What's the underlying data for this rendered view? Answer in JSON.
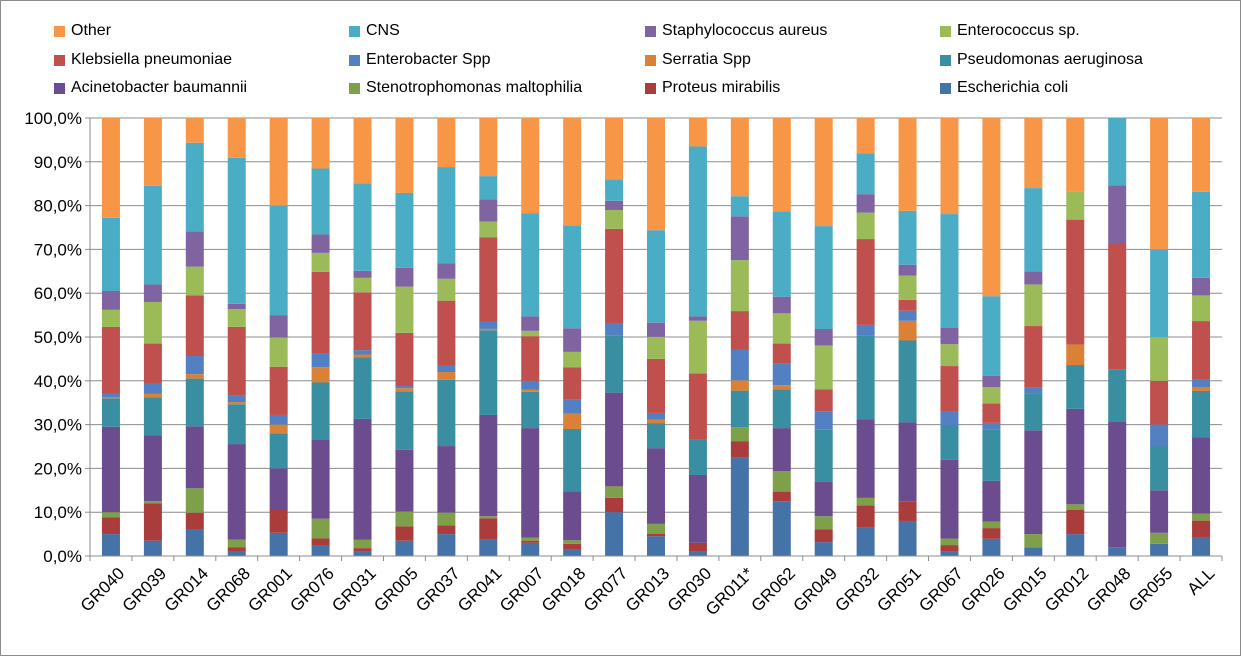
{
  "chart_data": {
    "type": "bar",
    "stacked": true,
    "percent": true,
    "ylim": [
      0,
      100
    ],
    "yticks": [
      "0,0%",
      "10,0%",
      "20,0%",
      "30,0%",
      "40,0%",
      "50,0%",
      "60,0%",
      "70,0%",
      "80,0%",
      "90,0%",
      "100,0%"
    ],
    "grid": true,
    "legend_position": "top",
    "categories": [
      "GR040",
      "GR039",
      "GR014",
      "GR068",
      "GR001",
      "GR076",
      "GR031",
      "GR005",
      "GR037",
      "GR041",
      "GR007",
      "GR018",
      "GR077",
      "GR013",
      "GR030",
      "GR011*",
      "GR062",
      "GR049",
      "GR032",
      "GR051",
      "GR067",
      "GR026",
      "GR015",
      "GR012",
      "GR048",
      "GR055",
      "ALL"
    ],
    "series": [
      {
        "name": "Escherichia coli",
        "color": "#4572A7",
        "values": [
          5,
          3.5,
          6,
          1,
          5.3,
          2.5,
          1,
          3.5,
          5,
          3.8,
          3,
          1.5,
          10,
          4.5,
          1,
          22,
          12.5,
          3.2,
          6.5,
          8,
          1,
          4,
          2,
          5,
          2,
          2.8,
          4.3
        ]
      },
      {
        "name": "Proteus mirabilis",
        "color": "#AA3C3C",
        "values": [
          3.8,
          8.5,
          3.8,
          1,
          5.2,
          1.5,
          0.8,
          3.3,
          2,
          4.8,
          0.5,
          1.3,
          3.3,
          0.5,
          2,
          3.7,
          2.2,
          3,
          5,
          4.5,
          1.5,
          2.5,
          0,
          5.5,
          0,
          0,
          3.7
        ]
      },
      {
        "name": "Stenotrophomonas maltophilia",
        "color": "#7EA04A",
        "values": [
          1.2,
          0.5,
          5.5,
          1.7,
          0,
          4.5,
          1.9,
          3.4,
          2.9,
          0.5,
          0.7,
          0.8,
          2.6,
          2.3,
          0,
          3.1,
          4.7,
          3,
          1.7,
          0,
          1.5,
          1.5,
          3,
          1.3,
          0,
          2.5,
          1.6
        ]
      },
      {
        "name": "Acinetobacter baumannii",
        "color": "#6B4C8E",
        "values": [
          19.5,
          15,
          14,
          21.6,
          9.5,
          18,
          27.6,
          14.2,
          15.2,
          23.2,
          25,
          11.2,
          21.4,
          17.2,
          15.5,
          0,
          9.8,
          8,
          17.8,
          18,
          18,
          9.5,
          23.7,
          21.8,
          29,
          9.7,
          17.2
        ]
      },
      {
        "name": "Pseudomonas aeruginosa",
        "color": "#3A8EA1",
        "values": [
          6.5,
          8.7,
          10.8,
          9,
          8,
          13,
          14.1,
          13.4,
          15.1,
          19.4,
          8.3,
          14.2,
          13.1,
          5.7,
          8.2,
          8.2,
          8.8,
          12,
          19,
          18.7,
          8,
          12,
          8.3,
          10,
          12,
          10,
          10.5
        ]
      },
      {
        "name": "Serratia Spp",
        "color": "#DA8137",
        "values": [
          0.3,
          0.8,
          1,
          0.5,
          2,
          3.5,
          0.6,
          0.7,
          1.8,
          0.3,
          0.5,
          3.5,
          0,
          0.8,
          0,
          2.3,
          1,
          0,
          0,
          4.5,
          0,
          0,
          0,
          4.7,
          0,
          0,
          0.9
        ]
      },
      {
        "name": "Enterobacter Spp",
        "color": "#5380C2",
        "values": [
          0.7,
          2.5,
          4.1,
          1.5,
          2.2,
          3.2,
          1,
          0.5,
          1.5,
          1.7,
          2,
          3.2,
          2.8,
          1.5,
          0,
          6.9,
          4.9,
          4.3,
          2.5,
          2.3,
          3,
          1.5,
          1.5,
          0,
          0,
          5,
          1.8
        ]
      },
      {
        "name": "Klebsiella pneumoniae",
        "color": "#C0504D",
        "values": [
          15.3,
          9,
          13.7,
          15.5,
          11,
          18.5,
          13.2,
          12.2,
          14.8,
          19.3,
          10.2,
          7.4,
          21.5,
          12.3,
          15,
          8.6,
          4.6,
          5,
          19.5,
          2.5,
          10.5,
          4.5,
          14,
          28.5,
          28.8,
          10,
          13.1
        ]
      },
      {
        "name": "Enterococcus sp.",
        "color": "#9BBB59",
        "values": [
          3.9,
          9.5,
          6.5,
          4,
          6.7,
          4.3,
          3.3,
          10.6,
          5,
          3.6,
          1.2,
          3.5,
          4.3,
          5,
          12,
          11.4,
          6.9,
          10.2,
          6,
          5.5,
          5,
          3.8,
          9.5,
          6.5,
          0,
          10,
          5.8
        ]
      },
      {
        "name": "Staphylococcus aureus",
        "color": "#8064A2",
        "values": [
          4.3,
          4,
          8,
          1.2,
          5.1,
          4.2,
          1.6,
          4.3,
          3.5,
          5.1,
          3.3,
          5.4,
          2.1,
          3.2,
          1,
          9.8,
          3.8,
          3.8,
          4.2,
          2.5,
          3.8,
          2.7,
          3,
          0,
          13.5,
          0,
          4
        ]
      },
      {
        "name": "CNS",
        "color": "#4BACC6",
        "values": [
          16.7,
          22.5,
          20,
          33,
          25,
          15,
          20,
          17.2,
          22,
          5.3,
          23.5,
          23.5,
          4.9,
          21,
          38.8,
          4.5,
          19.5,
          23.8,
          9.3,
          12.3,
          26,
          18.5,
          19,
          0,
          15.5,
          20,
          19.4
        ]
      },
      {
        "name": "Other",
        "color": "#F79646",
        "values": [
          22.8,
          15.5,
          5.6,
          9,
          20,
          11.5,
          14.9,
          17.2,
          11.2,
          13.3,
          21.8,
          24.5,
          14,
          25.5,
          6.5,
          17.5,
          21.3,
          25,
          8,
          21.2,
          22,
          41.5,
          16,
          16.7,
          0,
          30,
          16.7
        ]
      }
    ],
    "legend_order": [
      "Other",
      "CNS",
      "Staphylococcus aureus",
      "Enterococcus sp.",
      "Klebsiella pneumoniae",
      "Enterobacter Spp",
      "Serratia Spp",
      "Pseudomonas aeruginosa",
      "Acinetobacter baumannii",
      "Stenotrophomonas maltophilia",
      "Proteus mirabilis",
      "Escherichia coli"
    ]
  }
}
